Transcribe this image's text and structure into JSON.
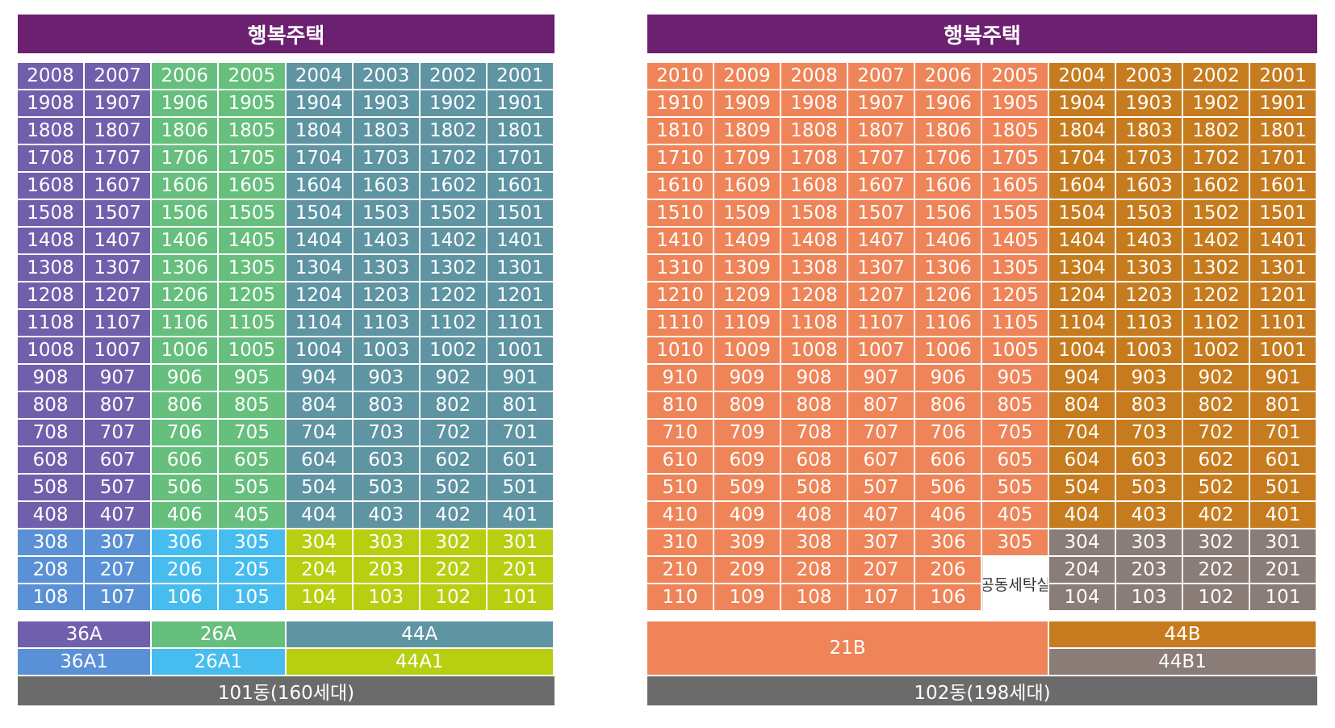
{
  "colors": {
    "header": "#6b2070",
    "36A": "#7060ac",
    "26A": "#66bf7d",
    "44A": "#5f94a2",
    "36A1": "#5a91d6",
    "26A1": "#46bdee",
    "44A1": "#b7cf10",
    "21B": "#ee8458",
    "44B": "#c67c1e",
    "44B1": "#8a7c77",
    "footer": "#6b6b6b",
    "facility": "#ffffff"
  },
  "buildings": [
    {
      "id": "b101",
      "header": "행복주택",
      "footer": "101동(160세대)",
      "columns": [
        "08",
        "07",
        "06",
        "05",
        "04",
        "03",
        "02",
        "01"
      ],
      "floors": [
        20,
        19,
        18,
        17,
        16,
        15,
        14,
        13,
        12,
        11,
        10,
        9,
        8,
        7,
        6,
        5,
        4,
        3,
        2,
        1
      ],
      "type_zones": [
        {
          "floors": [
            4,
            20
          ],
          "columns": [
            "08",
            "07"
          ],
          "type": "36A"
        },
        {
          "floors": [
            4,
            20
          ],
          "columns": [
            "06",
            "05"
          ],
          "type": "26A"
        },
        {
          "floors": [
            4,
            20
          ],
          "columns": [
            "04",
            "03",
            "02",
            "01"
          ],
          "type": "44A"
        },
        {
          "floors": [
            1,
            3
          ],
          "columns": [
            "08",
            "07"
          ],
          "type": "36A1"
        },
        {
          "floors": [
            1,
            3
          ],
          "columns": [
            "06",
            "05"
          ],
          "type": "26A1"
        },
        {
          "floors": [
            1,
            3
          ],
          "columns": [
            "04",
            "03",
            "02",
            "01"
          ],
          "type": "44A1"
        }
      ],
      "special_cells": [],
      "legend": [
        {
          "label": "36A",
          "type": "36A",
          "row": 1,
          "col": 1,
          "colspan": 2,
          "rowspan": 1
        },
        {
          "label": "26A",
          "type": "26A",
          "row": 1,
          "col": 3,
          "colspan": 2,
          "rowspan": 1
        },
        {
          "label": "44A",
          "type": "44A",
          "row": 1,
          "col": 5,
          "colspan": 4,
          "rowspan": 1
        },
        {
          "label": "36A1",
          "type": "36A1",
          "row": 2,
          "col": 1,
          "colspan": 2,
          "rowspan": 1
        },
        {
          "label": "26A1",
          "type": "26A1",
          "row": 2,
          "col": 3,
          "colspan": 2,
          "rowspan": 1
        },
        {
          "label": "44A1",
          "type": "44A1",
          "row": 2,
          "col": 5,
          "colspan": 4,
          "rowspan": 1
        }
      ]
    },
    {
      "id": "b102",
      "header": "행복주택",
      "footer": "102동(198세대)",
      "columns": [
        "10",
        "09",
        "08",
        "07",
        "06",
        "05",
        "04",
        "03",
        "02",
        "01"
      ],
      "floors": [
        20,
        19,
        18,
        17,
        16,
        15,
        14,
        13,
        12,
        11,
        10,
        9,
        8,
        7,
        6,
        5,
        4,
        3,
        2,
        1
      ],
      "type_zones": [
        {
          "floors": [
            1,
            20
          ],
          "columns": [
            "10",
            "09",
            "08",
            "07",
            "06",
            "05"
          ],
          "type": "21B"
        },
        {
          "floors": [
            4,
            20
          ],
          "columns": [
            "04",
            "03",
            "02",
            "01"
          ],
          "type": "44B"
        },
        {
          "floors": [
            1,
            3
          ],
          "columns": [
            "04",
            "03",
            "02",
            "01"
          ],
          "type": "44B1"
        }
      ],
      "special_cells": [
        {
          "column": "05",
          "floors": [
            1,
            2
          ],
          "label": "공동세탁실"
        }
      ],
      "legend": [
        {
          "label": "21B",
          "type": "21B",
          "row": 1,
          "col": 1,
          "colspan": 6,
          "rowspan": 2
        },
        {
          "label": "44B",
          "type": "44B",
          "row": 1,
          "col": 7,
          "colspan": 4,
          "rowspan": 1
        },
        {
          "label": "44B1",
          "type": "44B1",
          "row": 2,
          "col": 7,
          "colspan": 4,
          "rowspan": 1
        }
      ]
    }
  ]
}
